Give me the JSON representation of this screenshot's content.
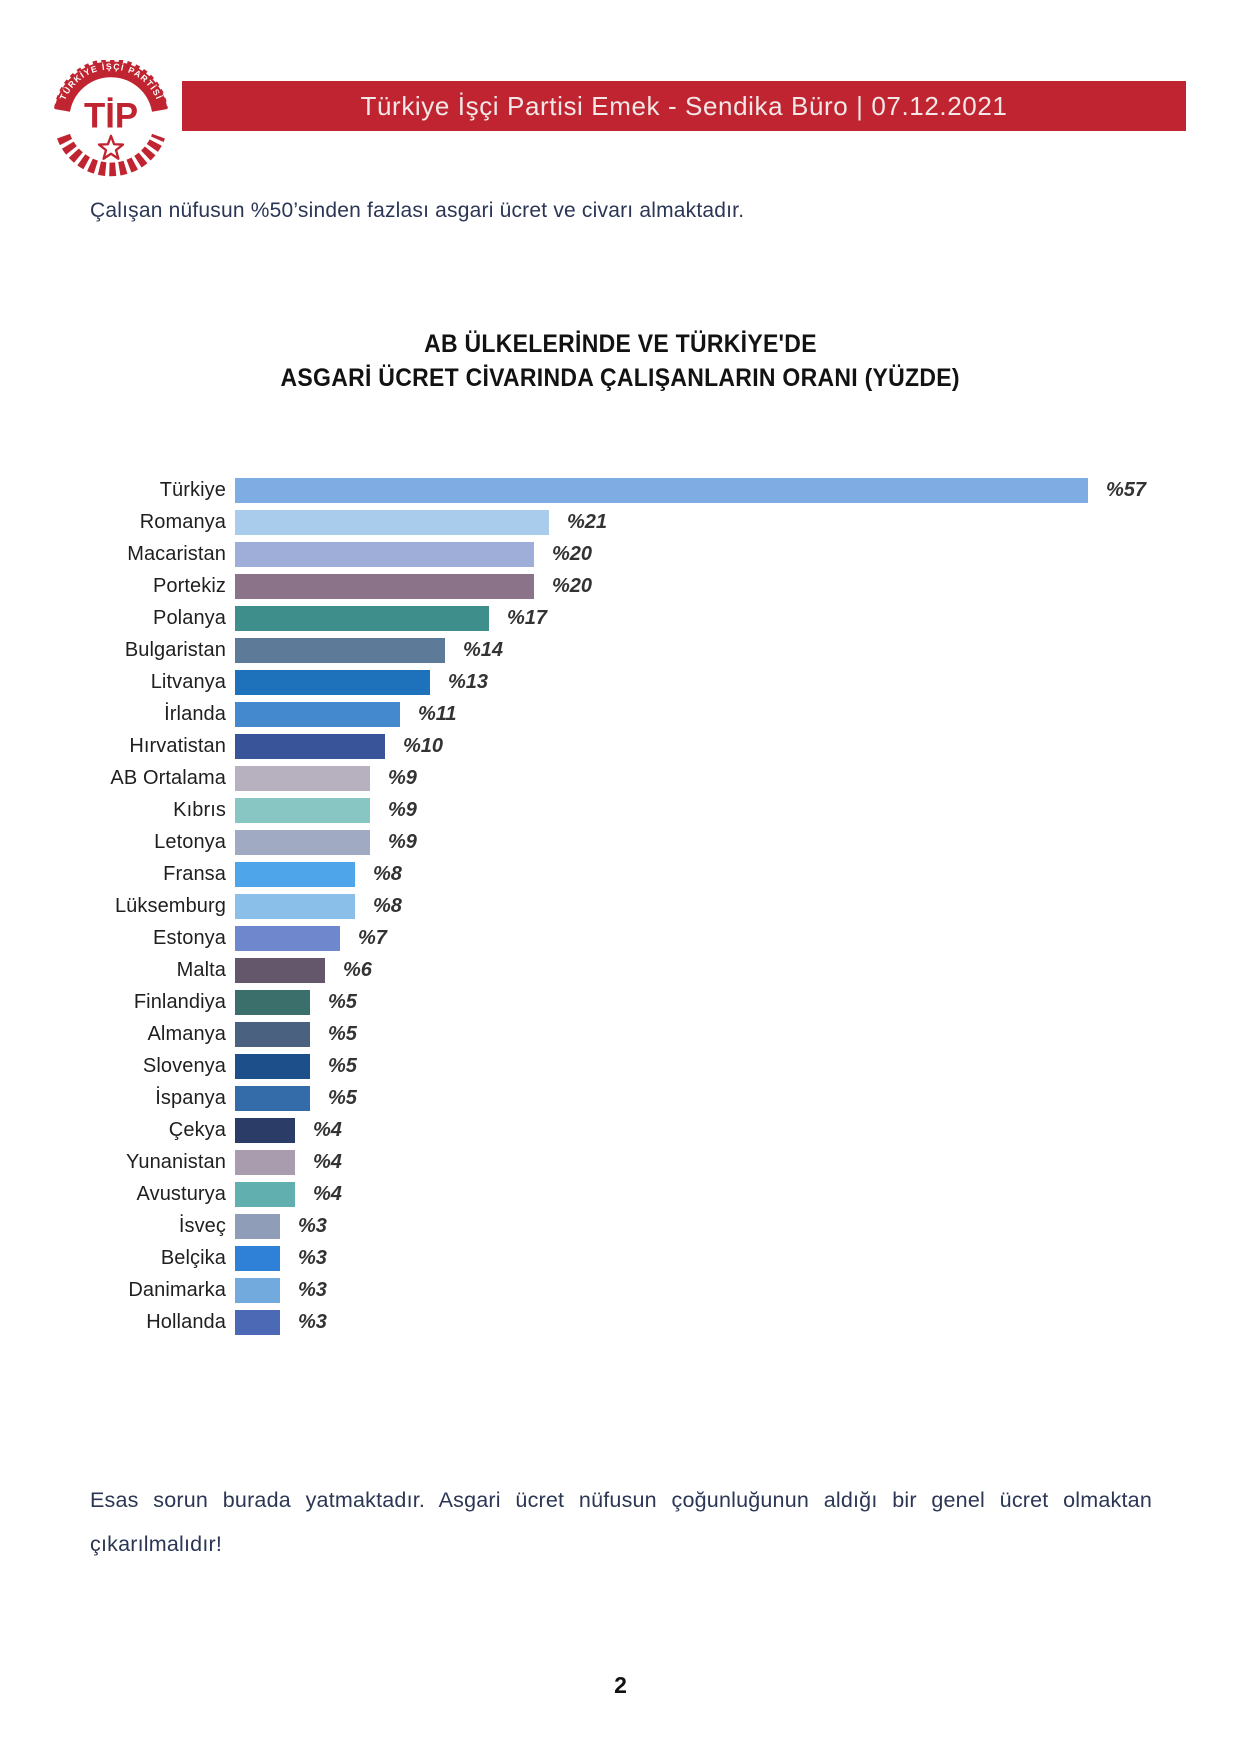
{
  "header": {
    "bar_text": "Türkiye İşçi Partisi Emek - Sendika Büro | 07.12.2021",
    "bar_color": "#BF2430",
    "logo": {
      "center_label": "TİP",
      "ring_text": "TÜRKİYE İŞÇİ PARTİSİ",
      "color": "#BF2430"
    }
  },
  "intro_text": "Çalışan nüfusun %50’sinden fazlası asgari ücret ve civarı almaktadır.",
  "chart_data": {
    "type": "bar",
    "orientation": "horizontal",
    "title_line1": "AB ÜLKELERİNDE VE TÜRKİYE'DE",
    "title_line2": "ASGARİ ÜCRET CİVARINDA ÇALIŞANLARIN ORANI (YÜZDE)",
    "value_prefix": "%",
    "xlim": [
      0,
      57
    ],
    "grid": false,
    "legend": false,
    "categories": [
      "Türkiye",
      "Romanya",
      "Macaristan",
      "Portekiz",
      "Polanya",
      "Bulgaristan",
      "Litvanya",
      "İrlanda",
      "Hırvatistan",
      "AB Ortalama",
      "Kıbrıs",
      "Letonya",
      "Fransa",
      "Lüksemburg",
      "Estonya",
      "Malta",
      "Finlandiya",
      "Almanya",
      "Slovenya",
      "İspanya",
      "Çekya",
      "Yunanistan",
      "Avusturya",
      "İsveç",
      "Belçika",
      "Danimarka",
      "Hollanda"
    ],
    "values": [
      57,
      21,
      20,
      20,
      17,
      14,
      13,
      11,
      10,
      9,
      9,
      9,
      8,
      8,
      7,
      6,
      5,
      5,
      5,
      5,
      4,
      4,
      4,
      3,
      3,
      3,
      3
    ],
    "value_labels": [
      "%57",
      "%21",
      "%20",
      "%20",
      "%17",
      "%14",
      "%13",
      "%11",
      "%10",
      "%9",
      "%9",
      "%9",
      "%8",
      "%8",
      "%7",
      "%6",
      "%5",
      "%5",
      "%5",
      "%5",
      "%4",
      "%4",
      "%4",
      "%3",
      "%3",
      "%3",
      "%3"
    ],
    "bar_colors": [
      "#7FACE3",
      "#A9CCEC",
      "#9FAED8",
      "#8B7489",
      "#3E8F8B",
      "#5D7A98",
      "#1E72BB",
      "#4489CE",
      "#3A549A",
      "#B6B0BF",
      "#87C6C2",
      "#A0AAC3",
      "#4EA5E9",
      "#8ABFEA",
      "#6F87CD",
      "#64576C",
      "#3A6F6C",
      "#4A627F",
      "#1D4F8B",
      "#346BA9",
      "#2B3C67",
      "#A99CAE",
      "#62AFAF",
      "#8F9DB9",
      "#2F80D7",
      "#72AADD",
      "#4B69B4"
    ]
  },
  "footer_paragraph": "Esas sorun burada yatmaktadır. Asgari ücret nüfusun çoğunluğunun aldığı bir genel ücret olmaktan çıkarılmalıdır!",
  "page_number": "2"
}
